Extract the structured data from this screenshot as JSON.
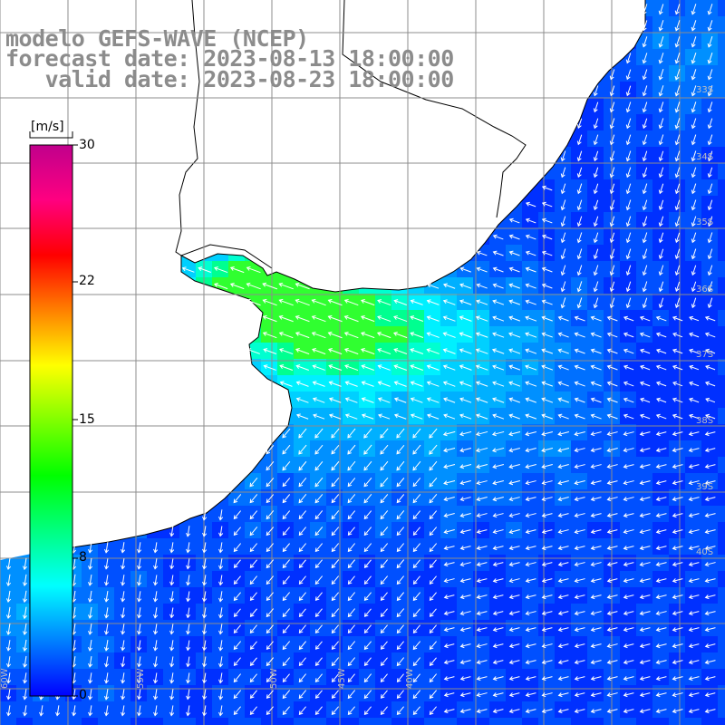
{
  "title": {
    "line1": "modelo GEFS-WAVE (NCEP)",
    "line2": "forecast date: 2023-08-13 18:00:00",
    "line3": "   valid date: 2023-08-23 18:00:00"
  },
  "colorbar": {
    "unit": "[m/s]",
    "ticks": [
      30,
      22,
      15,
      8,
      0
    ],
    "min": 0,
    "max": 30,
    "colors": [
      "#0000ff",
      "#0080ff",
      "#00ffff",
      "#00ff80",
      "#00ff00",
      "#80ff00",
      "#ffff00",
      "#ff8000",
      "#ff0000",
      "#ff0080",
      "#c0008c"
    ]
  },
  "map": {
    "lon_labels": [
      "60W",
      "55W",
      "50W",
      "45W",
      "40W"
    ],
    "lat_labels": [
      "33S",
      "34S",
      "35S",
      "36S",
      "37S",
      "38S",
      "39S",
      "40S"
    ],
    "land_color": "#ffffff",
    "coast_color": "#000000",
    "grid_color": "#8c8c8c",
    "arrow_color": "#ffffff"
  }
}
